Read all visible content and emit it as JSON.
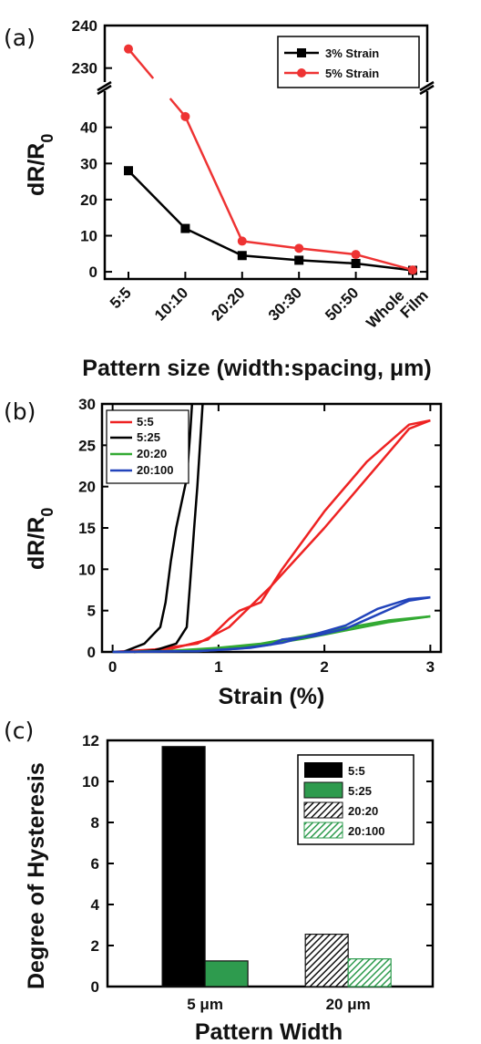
{
  "chart_data": [
    {
      "panel": "(a)",
      "type": "line",
      "xlabel": "Pattern size (width:spacing, μm)",
      "ylabel": "dR/R",
      "ylabel_sub": "0",
      "categories": [
        "5:5",
        "10:10",
        "20:20",
        "30:30",
        "50:50",
        "Whole Film"
      ],
      "y_ticks_lower": [
        "0",
        "10",
        "20",
        "30",
        "40"
      ],
      "y_ticks_upper": [
        "230",
        "240"
      ],
      "ylim_lower": [
        -2,
        47
      ],
      "ylim_upper": [
        228,
        240
      ],
      "axis_break": true,
      "grid": false,
      "legend_position": "top-right",
      "series": [
        {
          "name": "3% Strain",
          "color": "#000000",
          "marker": "square",
          "values": [
            28.0,
            12.0,
            4.5,
            3.2,
            2.3,
            0.4
          ]
        },
        {
          "name": "5% Strain",
          "color": "#ee3333",
          "marker": "circle",
          "values": [
            234.5,
            43.0,
            8.5,
            6.5,
            4.8,
            0.5
          ]
        }
      ]
    },
    {
      "panel": "(b)",
      "type": "line",
      "xlabel": "Strain (%)",
      "ylabel": "dR/R",
      "ylabel_sub": "0",
      "xlim": [
        -0.1,
        3.1
      ],
      "ylim": [
        0,
        30
      ],
      "x_ticks": [
        "0",
        "1",
        "2",
        "3"
      ],
      "y_ticks": [
        "0",
        "5",
        "10",
        "15",
        "20",
        "25",
        "30"
      ],
      "grid": false,
      "legend_position": "top-left",
      "series": [
        {
          "name": "5:5",
          "color": "#ee2222",
          "loops": [
            [
              [
                0,
                0
              ],
              [
                0.4,
                0.3
              ],
              [
                0.8,
                1.0
              ],
              [
                1.1,
                3.0
              ],
              [
                1.5,
                8.0
              ],
              [
                2.0,
                15.0
              ],
              [
                2.4,
                21.0
              ],
              [
                2.8,
                27.0
              ],
              [
                3.0,
                28.0
              ]
            ],
            [
              [
                3.0,
                28.0
              ],
              [
                2.8,
                27.5
              ],
              [
                2.4,
                23.0
              ],
              [
                2.0,
                17.0
              ],
              [
                1.6,
                10.0
              ],
              [
                1.4,
                6.0
              ],
              [
                1.2,
                5.0
              ],
              [
                1.1,
                4.0
              ],
              [
                0.9,
                1.5
              ],
              [
                0.5,
                0.2
              ],
              [
                0,
                0
              ]
            ]
          ]
        },
        {
          "name": "5:25",
          "color": "#000000",
          "loops": [
            [
              [
                0.1,
                0
              ],
              [
                0.3,
                1.0
              ],
              [
                0.45,
                3.0
              ],
              [
                0.5,
                6.0
              ],
              [
                0.55,
                11.0
              ],
              [
                0.6,
                15.0
              ],
              [
                0.65,
                18.0
              ],
              [
                0.7,
                21.0
              ],
              [
                0.73,
                26.0
              ],
              [
                0.75,
                30.0
              ]
            ],
            [
              [
                0.85,
                30.0
              ],
              [
                0.83,
                26.0
              ],
              [
                0.8,
                20.0
              ],
              [
                0.77,
                15.0
              ],
              [
                0.73,
                8.0
              ],
              [
                0.7,
                3.0
              ],
              [
                0.6,
                1.0
              ],
              [
                0.4,
                0.2
              ],
              [
                0.2,
                0
              ]
            ]
          ]
        },
        {
          "name": "20:20",
          "color": "#33aa33",
          "loops": [
            [
              [
                0,
                0
              ],
              [
                0.5,
                0.1
              ],
              [
                1.0,
                0.3
              ],
              [
                1.4,
                0.8
              ],
              [
                1.8,
                1.6
              ],
              [
                2.2,
                2.6
              ],
              [
                2.6,
                3.6
              ],
              [
                3.0,
                4.3
              ]
            ],
            [
              [
                3.0,
                4.3
              ],
              [
                2.6,
                3.8
              ],
              [
                2.2,
                2.9
              ],
              [
                1.8,
                1.9
              ],
              [
                1.4,
                1.0
              ],
              [
                1.0,
                0.5
              ],
              [
                0.5,
                0.1
              ],
              [
                0,
                0
              ]
            ]
          ]
        },
        {
          "name": "20:100",
          "color": "#2244bb",
          "loops": [
            [
              [
                0,
                0
              ],
              [
                0.8,
                0.1
              ],
              [
                1.2,
                0.4
              ],
              [
                1.5,
                0.9
              ],
              [
                1.6,
                1.5
              ],
              [
                1.9,
                1.9
              ],
              [
                2.2,
                2.8
              ],
              [
                2.5,
                4.5
              ],
              [
                2.8,
                6.2
              ],
              [
                3.0,
                6.6
              ]
            ],
            [
              [
                3.0,
                6.6
              ],
              [
                2.8,
                6.4
              ],
              [
                2.5,
                5.2
              ],
              [
                2.2,
                3.2
              ],
              [
                1.9,
                2.1
              ],
              [
                1.6,
                1.1
              ],
              [
                1.3,
                0.5
              ],
              [
                0.8,
                0.1
              ],
              [
                0,
                0
              ]
            ]
          ]
        }
      ]
    },
    {
      "panel": "(c)",
      "type": "bar",
      "xlabel": "Pattern Width",
      "ylabel": "Degree of Hysteresis",
      "categories": [
        "5 μm",
        "20 μm"
      ],
      "ylim": [
        0,
        12
      ],
      "y_ticks": [
        "0",
        "2",
        "4",
        "6",
        "8",
        "10",
        "12"
      ],
      "grid": false,
      "legend_position": "top-right",
      "series": [
        {
          "name": "5:5",
          "color": "#000000",
          "pattern": "solid",
          "group": 0,
          "value": 11.7
        },
        {
          "name": "5:25",
          "color": "#2e9b4e",
          "pattern": "solid",
          "group": 0,
          "value": 1.25
        },
        {
          "name": "20:20",
          "color": "#222222",
          "pattern": "hatched",
          "group": 1,
          "value": 2.55
        },
        {
          "name": "20:100",
          "color": "#2e9b4e",
          "pattern": "hatched",
          "group": 1,
          "value": 1.35
        }
      ]
    }
  ]
}
